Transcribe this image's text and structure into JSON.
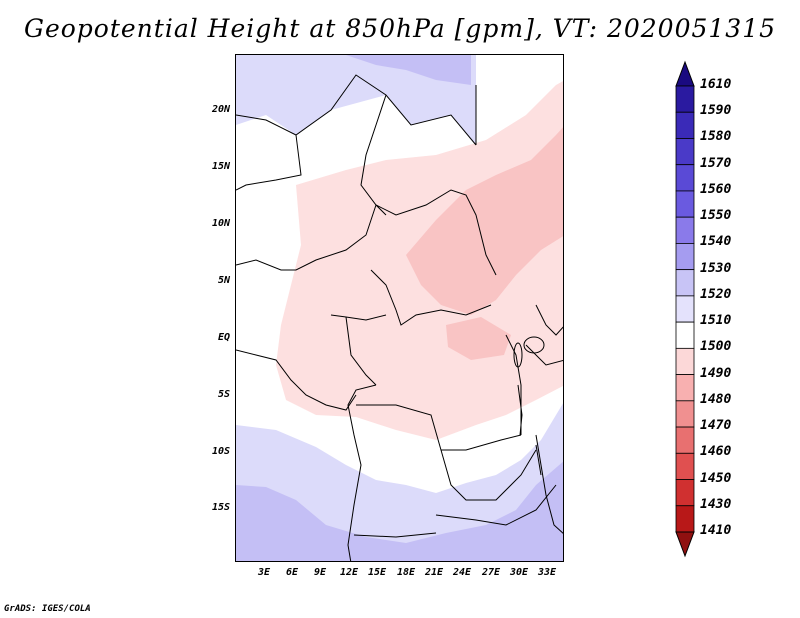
{
  "title": "Geopotential Height at 850hPa [gpm], VT: 2020051315",
  "footer": "GrADS: IGES/COLA",
  "map": {
    "lat_ticks": [
      "20N",
      "15N",
      "10N",
      "5N",
      "EQ",
      "5S",
      "10S",
      "15S"
    ],
    "lon_ticks": [
      "3E",
      "6E",
      "9E",
      "12E",
      "15E",
      "18E",
      "21E",
      "24E",
      "27E",
      "30E",
      "33E"
    ]
  },
  "colorbar": {
    "levels": [
      "1610",
      "1590",
      "1580",
      "1570",
      "1560",
      "1550",
      "1540",
      "1530",
      "1520",
      "1510",
      "1500",
      "1490",
      "1480",
      "1470",
      "1460",
      "1450",
      "1430",
      "1410"
    ],
    "colors": [
      "#1a0a80",
      "#2a1aa0",
      "#3a2ab8",
      "#4a3ac8",
      "#5a4ad6",
      "#6a5ae0",
      "#8a7aea",
      "#a59cf0",
      "#c8c4f6",
      "#e4e2fc",
      "#ffffff",
      "#fcd8d8",
      "#f8b0b0",
      "#f09090",
      "#e87070",
      "#e05050",
      "#d03030",
      "#b81818",
      "#901010"
    ]
  }
}
